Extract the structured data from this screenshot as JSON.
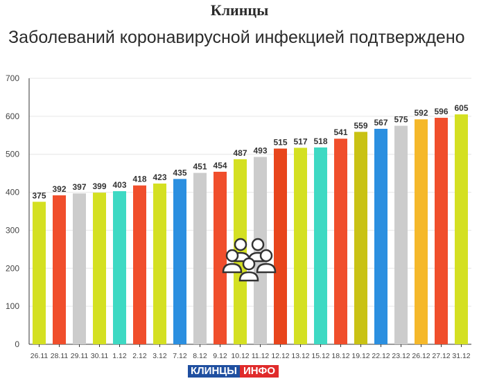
{
  "header": {
    "title": "Клинцы",
    "subtitle": "Заболеваний коронавирусной инфекцией подтверждено"
  },
  "logo": {
    "part1": "КЛИНЦЫ",
    "part2": "ИНФО"
  },
  "center_icon": "people-group-icon",
  "chart_data": {
    "type": "bar",
    "title": "Заболеваний коронавирусной инфекцией подтверждено",
    "xlabel": "",
    "ylabel": "",
    "ylim": [
      0,
      700
    ],
    "yticks": [
      0,
      100,
      200,
      300,
      400,
      500,
      600,
      700
    ],
    "grid": true,
    "categories": [
      "26.11",
      "28.11",
      "29.11",
      "30.11",
      "1.12",
      "2.12",
      "3.12",
      "7.12",
      "8.12",
      "9.12",
      "10.12",
      "11.12",
      "12.12",
      "13.12",
      "15.12",
      "18.12",
      "19.12",
      "22.12",
      "23.12",
      "26.12",
      "27.12",
      "31.12"
    ],
    "values": [
      375,
      392,
      397,
      399,
      403,
      418,
      423,
      435,
      451,
      454,
      487,
      493,
      515,
      517,
      518,
      541,
      559,
      567,
      575,
      592,
      596,
      605
    ],
    "colors": [
      "#d4e022",
      "#f04e2c",
      "#cccccc",
      "#d4e022",
      "#3ed9c3",
      "#f04e2c",
      "#d4e022",
      "#2b8fe0",
      "#cccccc",
      "#f04e2c",
      "#d4e022",
      "#cccccc",
      "#e8451c",
      "#d4e022",
      "#3ed9c3",
      "#f04e2c",
      "#c9c214",
      "#2b8fe0",
      "#cccccc",
      "#f5b82a",
      "#f04e2c",
      "#d4e022"
    ]
  }
}
